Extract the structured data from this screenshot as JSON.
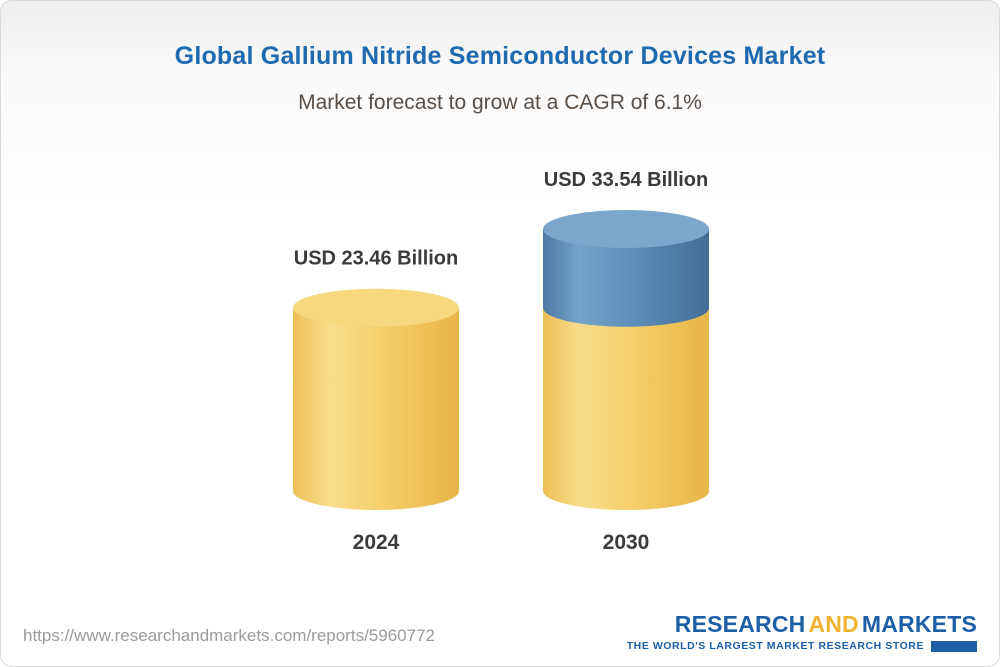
{
  "header": {
    "title": "Global Gallium Nitride Semiconductor Devices Market",
    "subtitle": "Market forecast to grow at a CAGR of 6.1%"
  },
  "chart_data": {
    "type": "bar",
    "subtype": "3d-cylinder",
    "title": "Global Gallium Nitride Semiconductor Devices Market",
    "subtitle": "Market forecast to grow at a CAGR of 6.1%",
    "unit": "USD Billion",
    "cagr_percent": 6.1,
    "categories": [
      "2024",
      "2030"
    ],
    "values": [
      23.46,
      33.54
    ],
    "value_labels": [
      "USD 23.46 Billion",
      "USD 33.54 Billion"
    ],
    "ylim": [
      0,
      33.54
    ],
    "grid": false,
    "legend": false,
    "bars": [
      {
        "category": "2024",
        "label": "USD 23.46 Billion",
        "segments": [
          {
            "value": 23.46,
            "color": "base"
          }
        ]
      },
      {
        "category": "2030",
        "label": "USD 33.54 Billion",
        "segments": [
          {
            "value": 23.46,
            "color": "base"
          },
          {
            "value": 10.08,
            "color": "growth"
          }
        ]
      }
    ],
    "colors": {
      "base": "#F5CE68",
      "base_top": "#F7D87F",
      "growth": "#5C8EB9",
      "growth_top": "#7CA7CC",
      "label_text": "#3B3B3B",
      "title_text": "#1E6AB0"
    }
  },
  "footer": {
    "url": "https://www.researchandmarkets.com/reports/5960772",
    "logo": {
      "word1": "RESEARCH",
      "word2": "AND",
      "word3": "MARKETS",
      "tagline": "THE WORLD'S LARGEST MARKET RESEARCH STORE"
    }
  }
}
